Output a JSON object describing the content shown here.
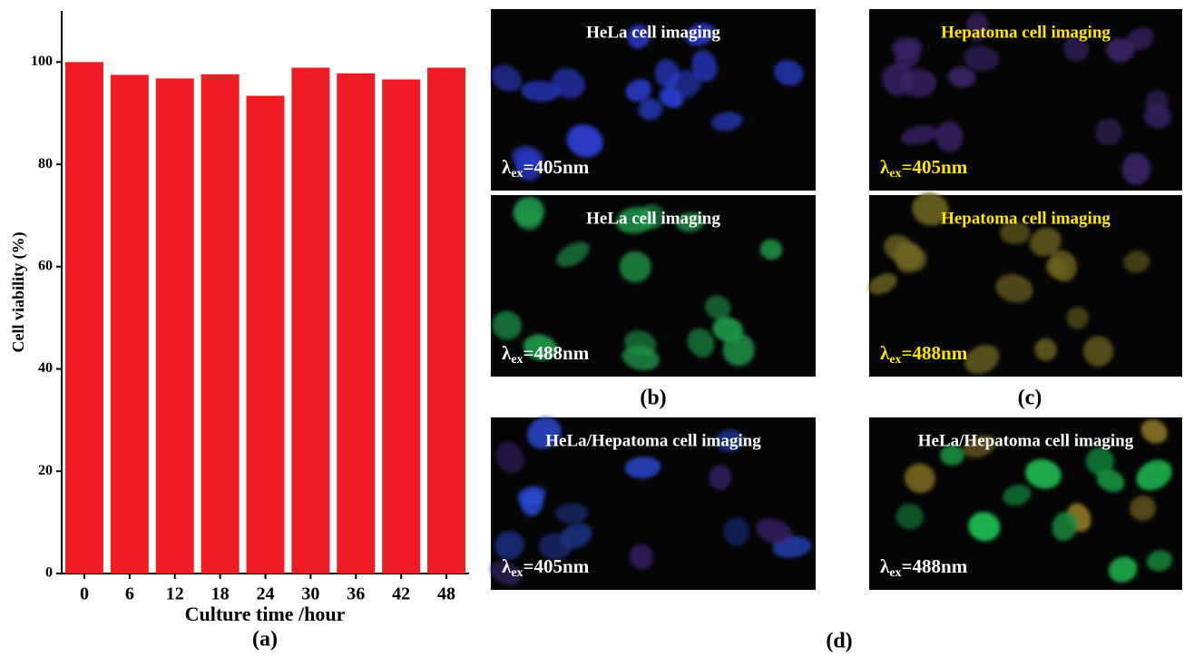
{
  "chart_data": {
    "type": "bar",
    "panel_label": "(a)",
    "x_label": "Culture time /hour",
    "y_label": "Cell viability (%)",
    "categories": [
      "0",
      "6",
      "12",
      "18",
      "24",
      "30",
      "36",
      "42",
      "48"
    ],
    "values": [
      100,
      97.5,
      96.8,
      97.6,
      93.4,
      98.9,
      97.8,
      96.6,
      98.9
    ],
    "color": "#ee1c25",
    "ylim": [
      0,
      110
    ],
    "yticks": [
      0,
      20,
      40,
      60,
      80,
      100
    ]
  },
  "panels": [
    {
      "label": "(b)",
      "images": [
        {
          "title": "HeLa cell imaging",
          "symbol": "λ",
          "subscript": "ex",
          "wavelength": "=405nm"
        },
        {
          "title": "HeLa cell imaging",
          "symbol": "λ",
          "subscript": "ex",
          "wavelength": "=488nm"
        }
      ]
    },
    {
      "label": "(c)",
      "images": [
        {
          "title": "Hepatoma cell imaging",
          "symbol": "λ",
          "subscript": "ex",
          "wavelength": "=405nm"
        },
        {
          "title": "Hepatoma cell imaging",
          "symbol": "λ",
          "subscript": "ex",
          "wavelength": "=488nm"
        }
      ]
    },
    {
      "label": "(d)",
      "images": [
        {
          "title": "HeLa/Hepatoma cell imaging",
          "symbol": "λ",
          "subscript": "ex",
          "wavelength": "=405nm"
        },
        {
          "title": "HeLa/Hepatoma cell imaging",
          "symbol": "λ",
          "subscript": "ex",
          "wavelength": "=488nm"
        }
      ]
    }
  ]
}
